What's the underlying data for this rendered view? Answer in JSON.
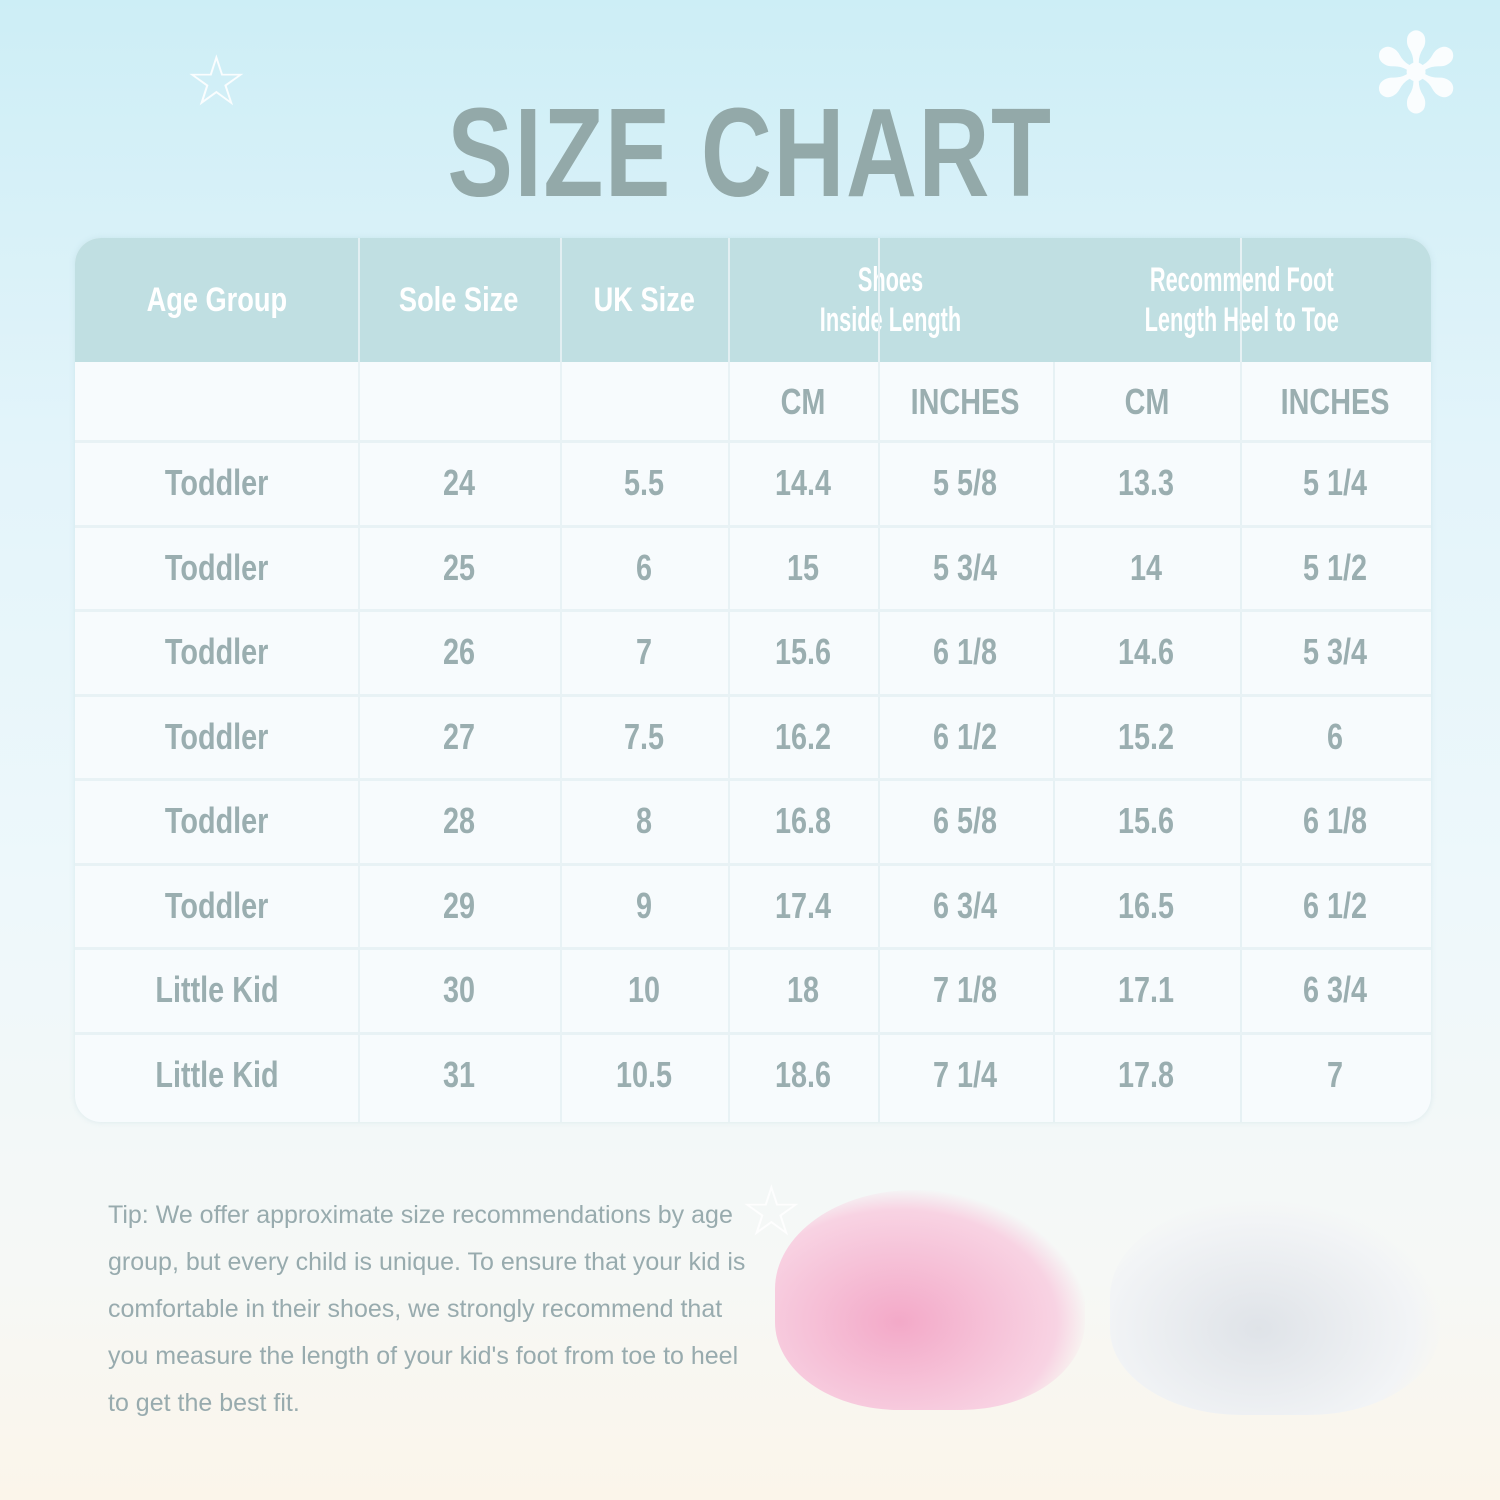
{
  "title": "SIZE CHART",
  "headers": {
    "age_group": "Age Group",
    "sole_size": "Sole Size",
    "uk_size": "UK Size",
    "shoes_inside_length": [
      "Shoes",
      "Inside Length"
    ],
    "recommend_foot_length": [
      "Recommend Foot",
      "Length Heel to Toe"
    ],
    "cm": "CM",
    "inches": "INCHES"
  },
  "rows": [
    [
      "Toddler",
      "24",
      "5.5",
      "14.4",
      "5 5/8",
      "13.3",
      "5 1/4"
    ],
    [
      "Toddler",
      "25",
      "6",
      "15",
      "5 3/4",
      "14",
      "5 1/2"
    ],
    [
      "Toddler",
      "26",
      "7",
      "15.6",
      "6 1/8",
      "14.6",
      "5 3/4"
    ],
    [
      "Toddler",
      "27",
      "7.5",
      "16.2",
      "6 1/2",
      "15.2",
      "6"
    ],
    [
      "Toddler",
      "28",
      "8",
      "16.8",
      "6 5/8",
      "15.6",
      "6 1/8"
    ],
    [
      "Toddler",
      "29",
      "9",
      "17.4",
      "6 3/4",
      "16.5",
      "6 1/2"
    ],
    [
      "Little Kid",
      "30",
      "10",
      "18",
      "7 1/8",
      "17.1",
      "6 3/4"
    ],
    [
      "Little Kid",
      "31",
      "10.5",
      "18.6",
      "7 1/4",
      "17.8",
      "7"
    ]
  ],
  "tip": "Tip: We offer approximate size recommendations by age group, but every child is unique. To ensure that your kid is comfortable in their shoes, we strongly recommend that you measure the length of your kid's foot from toe to heel to get the best fit.",
  "colors": {
    "header_bg": "#c0dfe2",
    "text": "#9aaeb0",
    "title": "#93a9a9"
  },
  "icons": [
    "starfish-icon",
    "palm-tree-icon"
  ]
}
